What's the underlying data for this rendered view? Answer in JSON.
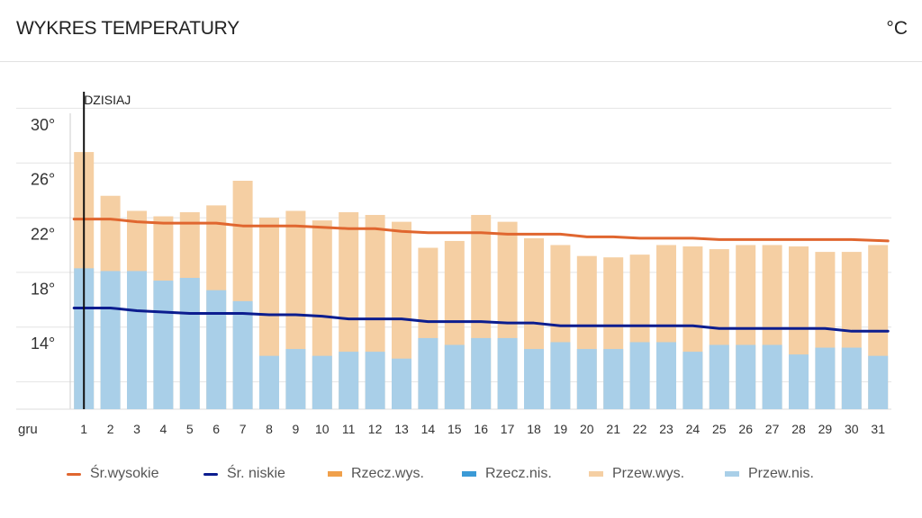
{
  "header": {
    "title": "WYKRES TEMPERATURY",
    "unit": "°C"
  },
  "chart_data": {
    "type": "bar",
    "title": "WYKRES TEMPERATURY",
    "unit": "°C",
    "xlabel": "gru",
    "ylabel": "",
    "ylim": [
      10,
      31.5
    ],
    "yticks": [
      14,
      18,
      22,
      26,
      30
    ],
    "ytick_labels": [
      "14°",
      "18°",
      "22°",
      "26°",
      "30°"
    ],
    "today_label": "DZISIAJ",
    "today_index": 0,
    "categories": [
      "1",
      "2",
      "3",
      "4",
      "5",
      "6",
      "7",
      "8",
      "9",
      "10",
      "11",
      "12",
      "13",
      "14",
      "15",
      "16",
      "17",
      "18",
      "19",
      "20",
      "21",
      "22",
      "23",
      "24",
      "25",
      "26",
      "27",
      "28",
      "29",
      "30",
      "31"
    ],
    "series": [
      {
        "name": "Przew.wys.",
        "kind": "bar",
        "color": "#f5cfa3",
        "values": [
          28.8,
          25.6,
          24.5,
          24.1,
          24.4,
          24.9,
          26.7,
          24.0,
          24.5,
          23.8,
          24.4,
          24.2,
          23.7,
          21.8,
          22.3,
          24.2,
          23.7,
          22.5,
          22.0,
          21.2,
          21.1,
          21.3,
          22.0,
          21.9,
          21.7,
          22.0,
          22.0,
          21.9,
          21.5,
          21.5,
          22.0
        ]
      },
      {
        "name": "Przew.nis.",
        "kind": "bar",
        "color": "#a9cfe8",
        "values": [
          20.3,
          20.1,
          20.1,
          19.4,
          19.6,
          18.7,
          17.9,
          13.9,
          14.4,
          13.9,
          14.2,
          14.2,
          13.7,
          15.2,
          14.7,
          15.2,
          15.2,
          14.4,
          14.9,
          14.4,
          14.4,
          14.9,
          14.9,
          14.2,
          14.7,
          14.7,
          14.7,
          14.0,
          14.5,
          14.5,
          13.9
        ]
      },
      {
        "name": "Śr.wysokie",
        "kind": "line",
        "color": "#e0662f",
        "values": [
          23.9,
          23.9,
          23.7,
          23.6,
          23.6,
          23.6,
          23.4,
          23.4,
          23.4,
          23.3,
          23.2,
          23.2,
          23.0,
          22.9,
          22.9,
          22.9,
          22.8,
          22.8,
          22.8,
          22.6,
          22.6,
          22.5,
          22.5,
          22.5,
          22.4,
          22.4,
          22.4,
          22.4,
          22.4,
          22.4,
          22.3
        ]
      },
      {
        "name": "Śr. niskie",
        "kind": "line",
        "color": "#0c1d8f",
        "values": [
          17.4,
          17.4,
          17.2,
          17.1,
          17.0,
          17.0,
          17.0,
          16.9,
          16.9,
          16.8,
          16.6,
          16.6,
          16.6,
          16.4,
          16.4,
          16.4,
          16.3,
          16.3,
          16.1,
          16.1,
          16.1,
          16.1,
          16.1,
          16.1,
          15.9,
          15.9,
          15.9,
          15.9,
          15.9,
          15.7,
          15.7
        ]
      }
    ]
  },
  "legend": [
    {
      "label": "Śr.wysokie",
      "color": "#e0662f",
      "kind": "line"
    },
    {
      "label": "Śr. niskie",
      "color": "#0c1d8f",
      "kind": "line"
    },
    {
      "label": "Rzecz.wys.",
      "color": "#f0a04b",
      "kind": "box"
    },
    {
      "label": "Rzecz.nis.",
      "color": "#3b9ad6",
      "kind": "box"
    },
    {
      "label": "Przew.wys.",
      "color": "#f5cfa3",
      "kind": "box"
    },
    {
      "label": "Przew.nis.",
      "color": "#a9cfe8",
      "kind": "box"
    }
  ]
}
